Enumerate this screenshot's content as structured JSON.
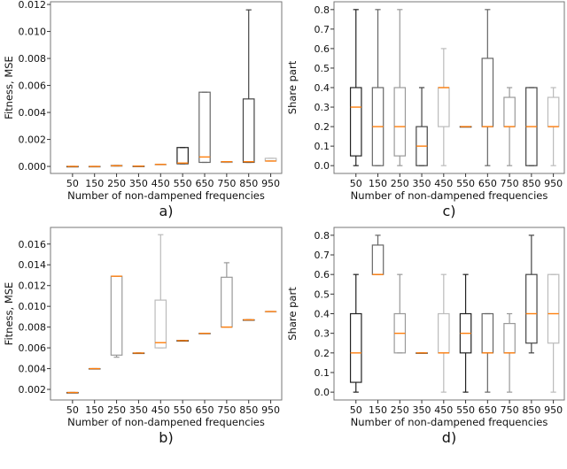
{
  "chart_data": [
    {
      "type": "box",
      "panel_label": "a)",
      "xlabel": "Number of non-dampened frequencies",
      "ylabel": "Fitness, MSE",
      "categories": [
        "50",
        "150",
        "250",
        "350",
        "450",
        "550",
        "650",
        "750",
        "850",
        "950"
      ],
      "yticks": [
        "0.000",
        "0.002",
        "0.004",
        "0.006",
        "0.008",
        "0.010",
        "0.012"
      ],
      "ytick_values": [
        0,
        0.002,
        0.004,
        0.006,
        0.008,
        0.01,
        0.012
      ],
      "ylim": [
        -0.00052,
        0.0122
      ],
      "boxes": [
        {
          "whislo": 0,
          "q1": 0,
          "med": 0,
          "q3": 0,
          "whishi": 0
        },
        {
          "whislo": 0,
          "q1": 0,
          "med": 0,
          "q3": 0,
          "whishi": 0
        },
        {
          "whislo": 2e-05,
          "q1": 2e-05,
          "med": 5e-05,
          "q3": 8e-05,
          "whishi": 8e-05
        },
        {
          "whislo": 2e-05,
          "q1": 2e-05,
          "med": 2e-05,
          "q3": 2e-05,
          "whishi": 2e-05
        },
        {
          "whislo": 0.00015,
          "q1": 0.00015,
          "med": 0.00015,
          "q3": 0.00015,
          "whishi": 0.00015
        },
        {
          "whislo": 0.0002,
          "q1": 0.0002,
          "med": 0.00025,
          "q3": 0.0014,
          "whishi": 0.0014
        },
        {
          "whislo": 0.0003,
          "q1": 0.0003,
          "med": 0.0007,
          "q3": 0.0055,
          "whishi": 0.0055
        },
        {
          "whislo": 0.0003,
          "q1": 0.0003,
          "med": 0.00035,
          "q3": 0.00035,
          "whishi": 0.00035
        },
        {
          "whislo": 0.0003,
          "q1": 0.0003,
          "med": 0.00035,
          "q3": 0.005,
          "whishi": 0.0116
        },
        {
          "whislo": 0.0004,
          "q1": 0.0004,
          "med": 0.0004,
          "q3": 0.0006,
          "whishi": 0.0006
        }
      ]
    },
    {
      "type": "box",
      "panel_label": "c)",
      "xlabel": "Number of non-dampened frequencies",
      "ylabel": "Share part",
      "categories": [
        "50",
        "150",
        "250",
        "350",
        "450",
        "550",
        "650",
        "750",
        "850",
        "950"
      ],
      "yticks": [
        "0.0",
        "0.1",
        "0.2",
        "0.3",
        "0.4",
        "0.5",
        "0.6",
        "0.7",
        "0.8"
      ],
      "ytick_values": [
        0,
        0.1,
        0.2,
        0.3,
        0.4,
        0.5,
        0.6,
        0.7,
        0.8
      ],
      "ylim": [
        -0.04,
        0.84
      ],
      "boxes": [
        {
          "whislo": 0,
          "q1": 0.05,
          "med": 0.3,
          "q3": 0.4,
          "whishi": 0.8
        },
        {
          "whislo": 0,
          "q1": 0,
          "med": 0.2,
          "q3": 0.4,
          "whishi": 0.8
        },
        {
          "whislo": 0,
          "q1": 0.05,
          "med": 0.2,
          "q3": 0.4,
          "whishi": 0.8
        },
        {
          "whislo": 0,
          "q1": 0,
          "med": 0.1,
          "q3": 0.2,
          "whishi": 0.4
        },
        {
          "whislo": 0,
          "q1": 0.2,
          "med": 0.4,
          "q3": 0.4,
          "whishi": 0.6
        },
        {
          "whislo": 0.2,
          "q1": 0.2,
          "med": 0.2,
          "q3": 0.2,
          "whishi": 0.2
        },
        {
          "whislo": 0,
          "q1": 0.2,
          "med": 0.2,
          "q3": 0.55,
          "whishi": 0.8
        },
        {
          "whislo": 0,
          "q1": 0.2,
          "med": 0.2,
          "q3": 0.35,
          "whishi": 0.4
        },
        {
          "whislo": 0,
          "q1": 0,
          "med": 0.2,
          "q3": 0.4,
          "whishi": 0.4
        },
        {
          "whislo": 0,
          "q1": 0.2,
          "med": 0.2,
          "q3": 0.35,
          "whishi": 0.4
        }
      ]
    },
    {
      "type": "box",
      "panel_label": "b)",
      "xlabel": "Number of non-dampened frequencies",
      "ylabel": "Fitness, MSE",
      "categories": [
        "50",
        "150",
        "250",
        "350",
        "450",
        "550",
        "650",
        "750",
        "850",
        "950"
      ],
      "yticks": [
        "0.002",
        "0.004",
        "0.006",
        "0.008",
        "0.010",
        "0.012",
        "0.014",
        "0.016"
      ],
      "ytick_values": [
        0.002,
        0.004,
        0.006,
        0.008,
        0.01,
        0.012,
        0.014,
        0.016
      ],
      "ylim": [
        0.00098,
        0.0176
      ],
      "boxes": [
        {
          "whislo": 0.0017,
          "q1": 0.0017,
          "med": 0.0017,
          "q3": 0.0017,
          "whishi": 0.0017
        },
        {
          "whislo": 0.004,
          "q1": 0.004,
          "med": 0.004,
          "q3": 0.004,
          "whishi": 0.004
        },
        {
          "whislo": 0.0051,
          "q1": 0.0053,
          "med": 0.0129,
          "q3": 0.0129,
          "whishi": 0.0129
        },
        {
          "whislo": 0.0055,
          "q1": 0.0055,
          "med": 0.0055,
          "q3": 0.0055,
          "whishi": 0.0055
        },
        {
          "whislo": 0.006,
          "q1": 0.006,
          "med": 0.0065,
          "q3": 0.0106,
          "whishi": 0.0169
        },
        {
          "whislo": 0.0067,
          "q1": 0.0067,
          "med": 0.0067,
          "q3": 0.0067,
          "whishi": 0.0067
        },
        {
          "whislo": 0.0074,
          "q1": 0.0074,
          "med": 0.0074,
          "q3": 0.0074,
          "whishi": 0.0074
        },
        {
          "whislo": 0.008,
          "q1": 0.008,
          "med": 0.008,
          "q3": 0.0128,
          "whishi": 0.0142
        },
        {
          "whislo": 0.0087,
          "q1": 0.0087,
          "med": 0.0087,
          "q3": 0.0087,
          "whishi": 0.0087
        },
        {
          "whislo": 0.0095,
          "q1": 0.0095,
          "med": 0.0095,
          "q3": 0.0095,
          "whishi": 0.0095
        }
      ]
    },
    {
      "type": "box",
      "panel_label": "d)",
      "xlabel": "Number of non-dampened frequencies",
      "ylabel": "Share part",
      "categories": [
        "50",
        "150",
        "250",
        "350",
        "450",
        "550",
        "650",
        "750",
        "850",
        "950"
      ],
      "yticks": [
        "0.0",
        "0.1",
        "0.2",
        "0.3",
        "0.4",
        "0.5",
        "0.6",
        "0.7",
        "0.8"
      ],
      "ytick_values": [
        0,
        0.1,
        0.2,
        0.3,
        0.4,
        0.5,
        0.6,
        0.7,
        0.8
      ],
      "ylim": [
        -0.04,
        0.84
      ],
      "boxes": [
        {
          "whislo": 0,
          "q1": 0.05,
          "med": 0.2,
          "q3": 0.4,
          "whishi": 0.6
        },
        {
          "whislo": 0.6,
          "q1": 0.6,
          "med": 0.6,
          "q3": 0.75,
          "whishi": 0.8
        },
        {
          "whislo": 0.2,
          "q1": 0.2,
          "med": 0.3,
          "q3": 0.4,
          "whishi": 0.6
        },
        {
          "whislo": 0.2,
          "q1": 0.2,
          "med": 0.2,
          "q3": 0.2,
          "whishi": 0.2
        },
        {
          "whislo": 0,
          "q1": 0.2,
          "med": 0.2,
          "q3": 0.4,
          "whishi": 0.6
        },
        {
          "whislo": 0,
          "q1": 0.2,
          "med": 0.3,
          "q3": 0.4,
          "whishi": 0.6
        },
        {
          "whislo": 0,
          "q1": 0.2,
          "med": 0.2,
          "q3": 0.4,
          "whishi": 0.4
        },
        {
          "whislo": 0,
          "q1": 0.2,
          "med": 0.2,
          "q3": 0.35,
          "whishi": 0.4
        },
        {
          "whislo": 0.2,
          "q1": 0.25,
          "med": 0.4,
          "q3": 0.6,
          "whishi": 0.8
        },
        {
          "whislo": 0,
          "q1": 0.25,
          "med": 0.4,
          "q3": 0.6,
          "whishi": 0.6
        }
      ]
    }
  ],
  "colors": {
    "box": "#333333",
    "median": "#ff7f0e",
    "axes": "#444444"
  }
}
